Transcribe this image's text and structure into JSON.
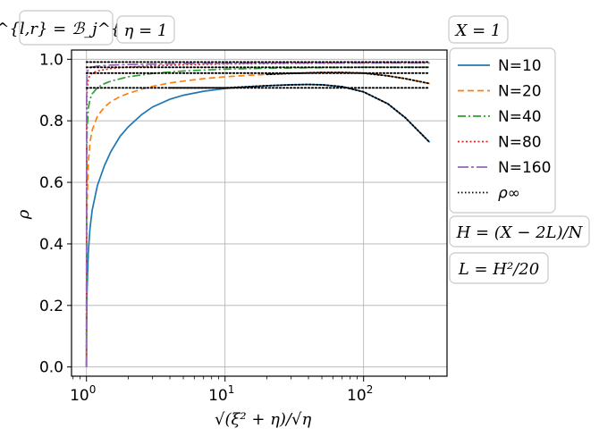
{
  "chart_data": {
    "type": "line",
    "xscale": "log",
    "xlim": [
      0.78,
      400
    ],
    "ylim": [
      -0.03,
      1.03
    ],
    "xlabel": "√(ξ² + η)/√η",
    "ylabel": "ρ",
    "grid": true,
    "x_ticks": [
      {
        "value": 1,
        "base": "10",
        "exp": "0"
      },
      {
        "value": 10,
        "base": "10",
        "exp": "1"
      },
      {
        "value": 100,
        "base": "10",
        "exp": "2"
      }
    ],
    "y_ticks": [
      "0.0",
      "0.2",
      "0.4",
      "0.6",
      "0.8",
      "1.0"
    ],
    "annotations": {
      "top_left_1": "ℬ^{l,r} = ℬ_j^{l,r}",
      "top_left_2": "η = 1",
      "top_right": "X = 1",
      "right_1": "H = (X − 2L)/N",
      "right_2": "L = H²/20"
    },
    "legend_placement": "right, outside axes",
    "series": [
      {
        "name": "N=10",
        "color": "#1f77b4",
        "dash": "solid",
        "x": [
          1,
          1.002,
          1.01,
          1.03,
          1.06,
          1.1,
          1.2,
          1.35,
          1.5,
          1.75,
          2,
          2.5,
          3,
          4,
          5,
          7,
          10,
          15,
          20,
          30,
          40,
          50,
          70,
          100,
          150,
          200,
          300
        ],
        "y": [
          0,
          0.11,
          0.25,
          0.37,
          0.45,
          0.51,
          0.59,
          0.655,
          0.7,
          0.75,
          0.78,
          0.82,
          0.845,
          0.87,
          0.883,
          0.896,
          0.905,
          0.911,
          0.914,
          0.917,
          0.918,
          0.917,
          0.911,
          0.894,
          0.855,
          0.81,
          0.73
        ]
      },
      {
        "name": "N=20",
        "color": "#ff7f0e",
        "dash": "dashed",
        "x": [
          1,
          1.002,
          1.01,
          1.03,
          1.06,
          1.1,
          1.2,
          1.35,
          1.5,
          1.75,
          2,
          2.5,
          3,
          4,
          5,
          7,
          10,
          15,
          20,
          30,
          50,
          70,
          100,
          150,
          200,
          300
        ],
        "y": [
          0,
          0.3,
          0.53,
          0.66,
          0.73,
          0.77,
          0.815,
          0.845,
          0.862,
          0.879,
          0.889,
          0.903,
          0.912,
          0.923,
          0.929,
          0.937,
          0.943,
          0.948,
          0.951,
          0.954,
          0.957,
          0.957,
          0.955,
          0.946,
          0.937,
          0.921
        ]
      },
      {
        "name": "N=40",
        "color": "#2ca02c",
        "dash": "dashdot",
        "x": [
          1,
          1.002,
          1.01,
          1.03,
          1.06,
          1.1,
          1.2,
          1.35,
          1.5,
          2,
          3,
          5,
          10,
          20,
          50,
          100,
          200,
          300
        ],
        "y": [
          0,
          0.58,
          0.77,
          0.84,
          0.87,
          0.888,
          0.908,
          0.921,
          0.929,
          0.943,
          0.954,
          0.962,
          0.968,
          0.971,
          0.973,
          0.974,
          0.974,
          0.974
        ]
      },
      {
        "name": "N=80",
        "color": "#d62728",
        "dash": "dotted",
        "x": [
          1,
          1.002,
          1.01,
          1.03,
          1.06,
          1.1,
          1.2,
          1.5,
          2,
          3,
          5,
          10,
          30,
          100,
          300
        ],
        "y": [
          0,
          0.8,
          0.9,
          0.935,
          0.948,
          0.955,
          0.962,
          0.97,
          0.975,
          0.979,
          0.982,
          0.985,
          0.987,
          0.988,
          0.988
        ]
      },
      {
        "name": "N=160",
        "color": "#9467bd",
        "dash": "longdash",
        "x": [
          1,
          1.002,
          1.01,
          1.03,
          1.06,
          1.1,
          1.2,
          1.5,
          2,
          5,
          10,
          30,
          100,
          300
        ],
        "y": [
          0,
          0.9,
          0.955,
          0.968,
          0.972,
          0.975,
          0.978,
          0.981,
          0.983,
          0.986,
          0.987,
          0.988,
          0.988,
          0.988
        ]
      },
      {
        "name": "ρ∞",
        "color": "#000000",
        "dash": "dots",
        "lines": [
          {
            "x": [
              1,
              300
            ],
            "y": [
              0.991,
              0.991
            ]
          },
          {
            "x": [
              1,
              300
            ],
            "y": [
              0.974,
              0.974
            ]
          },
          {
            "x": [
              1,
              300
            ],
            "y": [
              0.955,
              0.955
            ]
          },
          {
            "x": [
              1,
              300
            ],
            "y": [
              0.907,
              0.907
            ]
          },
          {
            "x": [
              4,
              7,
              10,
              15,
              20,
              30,
              40,
              50,
              70,
              100,
              150,
              200,
              300
            ],
            "y": [
              0.907,
              0.907,
              0.907,
              0.911,
              0.914,
              0.917,
              0.918,
              0.917,
              0.911,
              0.894,
              0.855,
              0.81,
              0.73
            ]
          },
          {
            "x": [
              20,
              30,
              50,
              70,
              100,
              150,
              200,
              300
            ],
            "y": [
              0.951,
              0.954,
              0.957,
              0.957,
              0.955,
              0.946,
              0.937,
              0.921
            ]
          }
        ]
      }
    ]
  }
}
